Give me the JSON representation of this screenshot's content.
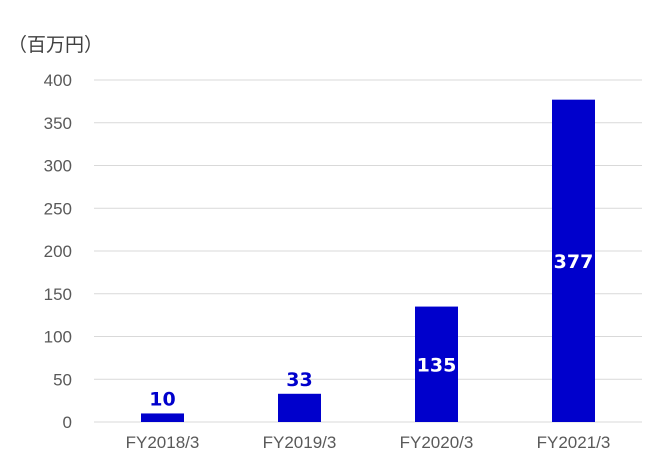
{
  "unit_label": "（百万円）",
  "colors": {
    "bar": "#0000cc",
    "grid": "#d9d9d9",
    "tick_text": "#595959",
    "label_outside": "#0000cc",
    "label_inside": "#ffffff"
  },
  "chart_data": {
    "type": "bar",
    "categories": [
      "FY2018/3",
      "FY2019/3",
      "FY2020/3",
      "FY2021/3"
    ],
    "values": [
      10,
      33,
      135,
      377
    ],
    "data_labels": [
      "10",
      "33",
      "135",
      "377"
    ],
    "y_ticks": [
      "0",
      "50",
      "100",
      "150",
      "200",
      "250",
      "300",
      "350",
      "400"
    ],
    "ylim": [
      0,
      400
    ],
    "title": "",
    "xlabel": "",
    "ylabel": "（百万円）",
    "grid": true,
    "legend": "none"
  }
}
